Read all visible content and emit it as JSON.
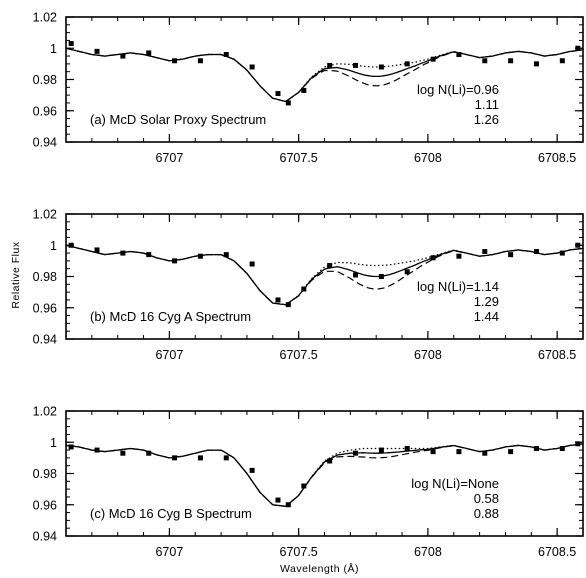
{
  "figure": {
    "ylabel": "Relative Flux",
    "xlabel": "Wavelength (Å)"
  },
  "chart_data": [
    {
      "type": "line",
      "title": "(a) McD Solar Proxy Spectrum",
      "xlim": [
        6706.6,
        6708.6
      ],
      "ylim": [
        0.94,
        1.02
      ],
      "x_ticks": [
        6707,
        6707.5,
        6708,
        6708.5
      ],
      "x_tick_labels": [
        "6707",
        "6707.5",
        "6708",
        "6708.5"
      ],
      "y_ticks": [
        0.94,
        0.96,
        0.98,
        1,
        1.02
      ],
      "y_tick_labels": [
        "0.94",
        "0.96",
        "0.98",
        "1",
        "1.02"
      ],
      "li_labels": [
        "log N(Li)=0.96",
        "1.11",
        "1.26"
      ],
      "li_depths": [
        0.005,
        0.011,
        0.017
      ],
      "observed": {
        "x": [
          6706.62,
          6706.72,
          6706.82,
          6706.92,
          6707.02,
          6707.12,
          6707.22,
          6707.32,
          6707.42,
          6707.46,
          6707.52,
          6707.62,
          6707.72,
          6707.82,
          6707.92,
          6708.02,
          6708.12,
          6708.22,
          6708.32,
          6708.42,
          6708.52,
          6708.58
        ],
        "y": [
          1.003,
          0.998,
          0.995,
          0.997,
          0.992,
          0.992,
          0.996,
          0.988,
          0.971,
          0.965,
          0.973,
          0.989,
          0.989,
          0.988,
          0.99,
          0.993,
          0.996,
          0.992,
          0.992,
          0.99,
          0.992,
          1.0
        ]
      },
      "model": {
        "x": [
          6706.6,
          6706.65,
          6706.7,
          6706.75,
          6706.8,
          6706.85,
          6706.9,
          6706.95,
          6707.0,
          6707.05,
          6707.1,
          6707.15,
          6707.2,
          6707.25,
          6707.3,
          6707.35,
          6707.4,
          6707.45,
          6707.5,
          6707.55,
          6707.6,
          6707.65,
          6707.7,
          6707.75,
          6707.8,
          6707.85,
          6707.9,
          6707.95,
          6708.0,
          6708.05,
          6708.1,
          6708.15,
          6708.2,
          6708.25,
          6708.3,
          6708.35,
          6708.4,
          6708.45,
          6708.5,
          6708.55,
          6708.6
        ],
        "y": [
          1.0,
          0.998,
          0.996,
          0.995,
          0.996,
          0.997,
          0.996,
          0.994,
          0.992,
          0.993,
          0.995,
          0.996,
          0.996,
          0.993,
          0.986,
          0.976,
          0.968,
          0.966,
          0.972,
          0.982,
          0.989,
          0.992,
          0.993,
          0.993,
          0.993,
          0.993,
          0.993,
          0.993,
          0.994,
          0.996,
          0.998,
          0.996,
          0.994,
          0.995,
          0.997,
          0.998,
          0.997,
          0.995,
          0.996,
          0.998,
          0.999
        ]
      }
    },
    {
      "type": "line",
      "title": "(b) McD 16 Cyg A Spectrum",
      "xlim": [
        6706.6,
        6708.6
      ],
      "ylim": [
        0.94,
        1.02
      ],
      "x_ticks": [
        6707,
        6707.5,
        6708,
        6708.5
      ],
      "x_tick_labels": [
        "6707",
        "6707.5",
        "6708",
        "6708.5"
      ],
      "y_ticks": [
        0.94,
        0.96,
        0.98,
        1,
        1.02
      ],
      "y_tick_labels": [
        "0.94",
        "0.96",
        "0.98",
        "1",
        "1.02"
      ],
      "li_labels": [
        "log N(Li)=1.14",
        "1.29",
        "1.44"
      ],
      "li_depths": [
        0.005,
        0.012,
        0.02
      ],
      "observed": {
        "x": [
          6706.62,
          6706.72,
          6706.82,
          6706.92,
          6707.02,
          6707.12,
          6707.22,
          6707.32,
          6707.42,
          6707.46,
          6707.52,
          6707.62,
          6707.72,
          6707.82,
          6707.92,
          6708.02,
          6708.12,
          6708.22,
          6708.32,
          6708.42,
          6708.52,
          6708.58
        ],
        "y": [
          1.0,
          0.997,
          0.995,
          0.994,
          0.99,
          0.993,
          0.994,
          0.988,
          0.965,
          0.962,
          0.972,
          0.987,
          0.981,
          0.98,
          0.983,
          0.992,
          0.993,
          0.996,
          0.994,
          0.996,
          0.995,
          1.0
        ]
      },
      "model": {
        "x": [
          6706.6,
          6706.65,
          6706.7,
          6706.75,
          6706.8,
          6706.85,
          6706.9,
          6706.95,
          6707.0,
          6707.05,
          6707.1,
          6707.15,
          6707.2,
          6707.25,
          6707.3,
          6707.35,
          6707.4,
          6707.45,
          6707.5,
          6707.55,
          6707.6,
          6707.65,
          6707.7,
          6707.75,
          6707.8,
          6707.85,
          6707.9,
          6707.95,
          6708.0,
          6708.05,
          6708.1,
          6708.15,
          6708.2,
          6708.25,
          6708.3,
          6708.35,
          6708.4,
          6708.45,
          6708.5,
          6708.55,
          6708.6
        ],
        "y": [
          1.0,
          0.998,
          0.996,
          0.994,
          0.995,
          0.996,
          0.995,
          0.992,
          0.99,
          0.991,
          0.993,
          0.994,
          0.994,
          0.99,
          0.982,
          0.971,
          0.963,
          0.962,
          0.968,
          0.979,
          0.987,
          0.991,
          0.992,
          0.992,
          0.992,
          0.992,
          0.992,
          0.992,
          0.993,
          0.995,
          0.997,
          0.995,
          0.993,
          0.994,
          0.996,
          0.997,
          0.996,
          0.994,
          0.995,
          0.997,
          0.998
        ]
      }
    },
    {
      "type": "line",
      "title": "(c) McD 16 Cyg B Spectrum",
      "xlim": [
        6706.6,
        6708.6
      ],
      "ylim": [
        0.94,
        1.02
      ],
      "x_ticks": [
        6707,
        6707.5,
        6708,
        6708.5
      ],
      "x_tick_labels": [
        "6707",
        "6707.5",
        "6708",
        "6708.5"
      ],
      "y_ticks": [
        0.94,
        0.96,
        0.98,
        1,
        1.02
      ],
      "y_tick_labels": [
        "0.94",
        "0.96",
        "0.98",
        "1",
        "1.02"
      ],
      "li_labels": [
        "log N(Li)=None",
        "0.58",
        "0.88"
      ],
      "li_depths": [
        0.0,
        0.003,
        0.006
      ],
      "observed": {
        "x": [
          6706.62,
          6706.72,
          6706.82,
          6706.92,
          6707.02,
          6707.12,
          6707.22,
          6707.32,
          6707.42,
          6707.46,
          6707.52,
          6707.62,
          6707.72,
          6707.82,
          6707.92,
          6708.02,
          6708.12,
          6708.22,
          6708.32,
          6708.42,
          6708.52,
          6708.58
        ],
        "y": [
          0.997,
          0.995,
          0.993,
          0.993,
          0.99,
          0.99,
          0.99,
          0.982,
          0.963,
          0.96,
          0.972,
          0.988,
          0.993,
          0.995,
          0.996,
          0.994,
          0.994,
          0.993,
          0.994,
          0.996,
          0.996,
          0.999
        ]
      },
      "model": {
        "x": [
          6706.6,
          6706.65,
          6706.7,
          6706.75,
          6706.8,
          6706.85,
          6706.9,
          6706.95,
          6707.0,
          6707.05,
          6707.1,
          6707.15,
          6707.2,
          6707.25,
          6707.3,
          6707.35,
          6707.4,
          6707.45,
          6707.5,
          6707.55,
          6707.6,
          6707.65,
          6707.7,
          6707.75,
          6707.8,
          6707.85,
          6707.9,
          6707.95,
          6708.0,
          6708.05,
          6708.1,
          6708.15,
          6708.2,
          6708.25,
          6708.3,
          6708.35,
          6708.4,
          6708.45,
          6708.5,
          6708.55,
          6708.6
        ],
        "y": [
          0.998,
          0.997,
          0.995,
          0.994,
          0.995,
          0.996,
          0.995,
          0.992,
          0.99,
          0.991,
          0.993,
          0.995,
          0.995,
          0.99,
          0.98,
          0.968,
          0.96,
          0.959,
          0.966,
          0.978,
          0.988,
          0.993,
          0.995,
          0.996,
          0.996,
          0.996,
          0.996,
          0.996,
          0.996,
          0.997,
          0.998,
          0.996,
          0.994,
          0.995,
          0.997,
          0.998,
          0.997,
          0.995,
          0.996,
          0.998,
          0.999
        ]
      }
    }
  ]
}
